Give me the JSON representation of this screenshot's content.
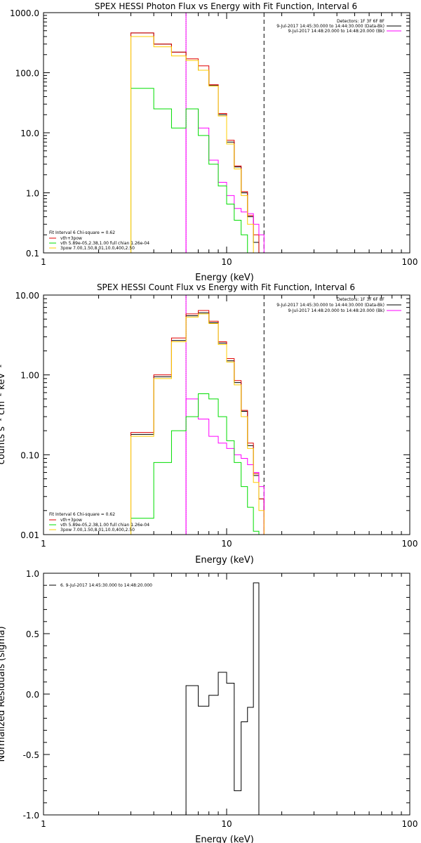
{
  "chart_data": [
    {
      "type": "line",
      "title": "SPEX HESSI Photon Flux vs Energy with Fit Function, Interval 6",
      "xlabel": "Energy (keV)",
      "ylabel": "",
      "xscale": "log",
      "yscale": "log",
      "xlim": [
        1,
        100
      ],
      "ylim": [
        0.1,
        1000
      ],
      "x_ticks": [
        "1",
        "10",
        "100"
      ],
      "y_ticks": [
        "0.1",
        "1.0",
        "10.0",
        "100.0",
        "1000.0"
      ],
      "x_edges": [
        3.0,
        4.0,
        5.0,
        6.0,
        7.0,
        8.0,
        9.0,
        10.0,
        11.0,
        12.0,
        13.0,
        14.0,
        15.0,
        16.0
      ],
      "series": [
        {
          "name": "",
          "color": "#000000",
          "values": [
            460,
            300,
            220,
            160,
            110,
            62,
            20,
            7.0,
            2.7,
            1.0,
            0.4,
            0.15,
            0.1
          ]
        },
        {
          "name": "",
          "color": "#e00000",
          "values": [
            460,
            300,
            220,
            170,
            130,
            63,
            21,
            7.5,
            2.8,
            1.05,
            0.42,
            0.2,
            0.1
          ]
        },
        {
          "name": "vth+3pow",
          "color": "#ff00ff",
          "values": [
            null,
            null,
            null,
            25,
            12,
            3.5,
            1.5,
            0.9,
            0.55,
            0.48,
            0.45,
            0.3,
            0.2
          ]
        },
        {
          "name": "vth 5.89e-05,2.38,1.00 full chian 1.26e-04",
          "color": "#00dd00",
          "values": [
            55,
            25,
            12,
            25,
            9,
            3,
            1.3,
            0.65,
            0.35,
            0.2,
            0.08,
            null,
            null
          ]
        },
        {
          "name": "3pow 7.00,1.50,8.01,10.0,400,2.50",
          "color": "#ffcc00",
          "values": [
            400,
            270,
            190,
            160,
            110,
            60,
            19,
            6.5,
            2.5,
            0.9,
            0.3,
            0.1,
            null
          ]
        }
      ],
      "vlines": [
        {
          "x": 6.0,
          "style": "dotted",
          "color": "#000000"
        },
        {
          "x": 6.0,
          "style": "solid",
          "color": "#ff00ff"
        },
        {
          "x": 16.0,
          "style": "dashed",
          "color": "#000000"
        }
      ],
      "annotations": [
        "Detectors: 1F 3F 6F 8F",
        "9-Jul-2017 14:45:30.000 to 14:44:30.000 (Data-Bk)",
        "9-Jul-2017 14:48:20.000 to 14:48:20.000 (Bk)"
      ],
      "fit_label": "Fit Interval 6    Chi-square = 0.62"
    },
    {
      "type": "line",
      "title": "SPEX HESSI Count Flux vs Energy with Fit Function, Interval 6",
      "xlabel": "Energy (keV)",
      "ylabel": "counts s⁻¹ cm⁻² keV⁻¹",
      "xscale": "log",
      "yscale": "log",
      "xlim": [
        1,
        100
      ],
      "ylim": [
        0.01,
        10
      ],
      "x_ticks": [
        "1",
        "10",
        "100"
      ],
      "y_ticks": [
        "0.01",
        "0.10",
        "1.00",
        "10.00"
      ],
      "x_edges": [
        3.0,
        4.0,
        5.0,
        6.0,
        7.0,
        8.0,
        9.0,
        10.0,
        11.0,
        12.0,
        13.0,
        14.0,
        15.0,
        16.0
      ],
      "series": [
        {
          "name": "",
          "color": "#000000",
          "values": [
            0.18,
            0.95,
            2.7,
            5.5,
            6.0,
            4.5,
            2.5,
            1.5,
            0.8,
            0.35,
            0.13,
            0.055,
            0.028
          ]
        },
        {
          "name": "",
          "color": "#e00000",
          "values": [
            0.19,
            1.0,
            2.9,
            5.8,
            6.4,
            4.7,
            2.6,
            1.6,
            0.85,
            0.36,
            0.14,
            0.058,
            0.028
          ]
        },
        {
          "name": "vth+3pow",
          "color": "#ff00ff",
          "values": [
            null,
            null,
            null,
            0.5,
            0.28,
            0.17,
            0.14,
            0.12,
            0.1,
            0.09,
            0.075,
            0.06,
            0.04
          ]
        },
        {
          "name": "vth 5.89e-05,2.38,1.00 full chian 1.26e-04",
          "color": "#00dd00",
          "values": [
            0.016,
            0.08,
            0.2,
            0.3,
            0.58,
            0.5,
            0.3,
            0.15,
            0.08,
            0.04,
            0.022,
            0.011,
            null
          ]
        },
        {
          "name": "3pow 7.00,1.50,8.01,10.0,400,2.50",
          "color": "#ffcc00",
          "values": [
            0.17,
            0.9,
            2.6,
            5.3,
            5.8,
            4.4,
            2.4,
            1.45,
            0.75,
            0.3,
            0.12,
            0.045,
            0.02
          ]
        }
      ],
      "vlines": [
        {
          "x": 6.0,
          "style": "dotted",
          "color": "#000000"
        },
        {
          "x": 6.0,
          "style": "solid",
          "color": "#ff00ff"
        },
        {
          "x": 16.0,
          "style": "dashed",
          "color": "#000000"
        }
      ],
      "annotations": [
        "Detectors: 1F 3F 6F 8F",
        "9-Jul-2017 14:45:30.000 to 14:44:30.000 (Data-Bk)",
        "9-Jul-2017 14:48:20.000 to 14:48:20.000 (Bk)"
      ],
      "fit_label": "Fit Interval 6    Chi-square = 0.62"
    },
    {
      "type": "line",
      "title": "",
      "xlabel": "Energy (keV)",
      "ylabel": "Normalized Residuals (sigma)",
      "xscale": "log",
      "yscale": "linear",
      "xlim": [
        1,
        100
      ],
      "ylim": [
        -1.0,
        1.0
      ],
      "x_ticks": [
        "1",
        "10",
        "100"
      ],
      "y_ticks": [
        "-1.0",
        "-0.5",
        "0.0",
        "0.5",
        "1.0"
      ],
      "x_edges": [
        6.0,
        7.0,
        8.0,
        9.0,
        10.0,
        11.0,
        12.0,
        13.0,
        14.0,
        15.0,
        16.0
      ],
      "series": [
        {
          "name": "6. 9-Jul-2017 14:45:30.000 to 14:48:20.000",
          "color": "#000000",
          "values": [
            0.07,
            -0.1,
            -0.01,
            0.18,
            0.09,
            -0.8,
            -0.23,
            -0.11,
            0.92,
            -1.0
          ]
        }
      ]
    }
  ]
}
